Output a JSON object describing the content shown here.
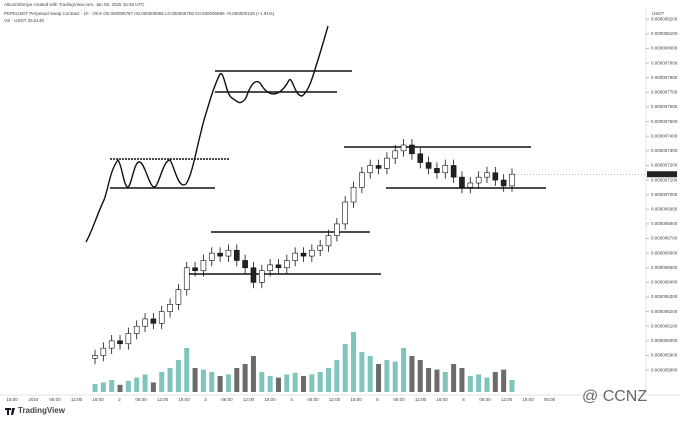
{
  "chart_data": {
    "type": "candlestick",
    "credit": "AltcoinSherpa created with TradingView.com, Jan 06, 2025 15:46 UTC",
    "title": "PEPEUSDT Perpetual Swap Contract · 1h · OKX  O0.000006767 H0.000006955 L0.000006758 C0.000006896 +0.000000129 (+1.91%)",
    "subtitle": "Vol · USDT  25.514K",
    "axis_unit": "USDT",
    "logo": "TradingView",
    "watermark": "@ CCNZ",
    "up_color": "#ffffff",
    "down_color": "#222222",
    "volume_up_color": "#7fc4bd",
    "volume_down_color": "#6b6b6b",
    "time_labels": [
      "18:00",
      "2024",
      "06:00",
      "12:00",
      "18:00",
      "2",
      "06:00",
      "12:00",
      "18:00",
      "3",
      "06:00",
      "12:00",
      "18:00",
      "4",
      "06:00",
      "12:00",
      "18:00",
      "5",
      "06:00",
      "12:00",
      "18:00",
      "6",
      "06:00",
      "12:00",
      "18:00",
      "06:00"
    ],
    "ylim": [
      5.65e-06,
      8.25e-06
    ],
    "yticks": [
      {
        "value": 8.2e-06,
        "label": "0.000008200"
      },
      {
        "value": 8.1e-06,
        "label": "0.000008100"
      },
      {
        "value": 8e-06,
        "label": "0.000008000"
      },
      {
        "value": 7.9e-06,
        "label": "0.000007900"
      },
      {
        "value": 7.8e-06,
        "label": "0.000007800"
      },
      {
        "value": 7.7e-06,
        "label": "0.000007700"
      },
      {
        "value": 7.6e-06,
        "label": "0.000007600"
      },
      {
        "value": 7.5e-06,
        "label": "0.000007500"
      },
      {
        "value": 7.4e-06,
        "label": "0.000007400"
      },
      {
        "value": 7.3e-06,
        "label": "0.000007300"
      },
      {
        "value": 7.2e-06,
        "label": "0.000007200"
      },
      {
        "value": 7.1e-06,
        "label": "0.000007100"
      },
      {
        "value": 7e-06,
        "label": "0.000007000"
      },
      {
        "value": 6.9e-06,
        "label": "0.000006900"
      },
      {
        "value": 6.8e-06,
        "label": "0.000006800"
      },
      {
        "value": 6.7e-06,
        "label": "0.000006700"
      },
      {
        "value": 6.6e-06,
        "label": "0.000006600"
      },
      {
        "value": 6.5e-06,
        "label": "0.000006500"
      },
      {
        "value": 6.4e-06,
        "label": "0.000006400"
      },
      {
        "value": 6.3e-06,
        "label": "0.000006300"
      },
      {
        "value": 6.2e-06,
        "label": "0.000006200"
      },
      {
        "value": 6.1e-06,
        "label": "0.000006100"
      },
      {
        "value": 6e-06,
        "label": "0.000006000"
      },
      {
        "value": 5.9e-06,
        "label": "0.000005900"
      },
      {
        "value": 5.8e-06,
        "label": "0.000005800"
      }
    ],
    "open": [
      5.88e-06,
      5.9e-06,
      5.95e-06,
      6e-06,
      5.98e-06,
      6.05e-06,
      6.1e-06,
      6.15e-06,
      6.12e-06,
      6.2e-06,
      6.25e-06,
      6.35e-06,
      6.5e-06,
      6.48e-06,
      6.55e-06,
      6.6e-06,
      6.58e-06,
      6.62e-06,
      6.55e-06,
      6.5e-06,
      6.4e-06,
      6.48e-06,
      6.52e-06,
      6.5e-06,
      6.55e-06,
      6.6e-06,
      6.58e-06,
      6.62e-06,
      6.65e-06,
      6.72e-06,
      6.8e-06,
      6.95e-06,
      7.05e-06,
      7.15e-06,
      7.2e-06,
      7.18e-06,
      7.25e-06,
      7.3e-06,
      7.34e-06,
      7.28e-06,
      7.22e-06,
      7.18e-06,
      7.15e-06,
      7.2e-06,
      7.12e-06,
      7.05e-06,
      7.08e-06,
      7.12e-06,
      7.15e-06,
      7.1e-06,
      7.06e-06
    ],
    "close": [
      5.9e-06,
      5.95e-06,
      6e-06,
      5.98e-06,
      6.05e-06,
      6.1e-06,
      6.15e-06,
      6.12e-06,
      6.2e-06,
      6.25e-06,
      6.35e-06,
      6.5e-06,
      6.48e-06,
      6.55e-06,
      6.6e-06,
      6.58e-06,
      6.62e-06,
      6.55e-06,
      6.5e-06,
      6.4e-06,
      6.48e-06,
      6.52e-06,
      6.5e-06,
      6.55e-06,
      6.6e-06,
      6.58e-06,
      6.62e-06,
      6.65e-06,
      6.72e-06,
      6.8e-06,
      6.95e-06,
      7.05e-06,
      7.15e-06,
      7.2e-06,
      7.18e-06,
      7.25e-06,
      7.3e-06,
      7.34e-06,
      7.28e-06,
      7.22e-06,
      7.18e-06,
      7.15e-06,
      7.2e-06,
      7.12e-06,
      7.05e-06,
      7.08e-06,
      7.12e-06,
      7.15e-06,
      7.1e-06,
      7.06e-06,
      7.14e-06
    ],
    "high": [
      5.94e-06,
      5.99e-06,
      6.04e-06,
      6.04e-06,
      6.09e-06,
      6.14e-06,
      6.19e-06,
      6.19e-06,
      6.24e-06,
      6.29e-06,
      6.39e-06,
      6.54e-06,
      6.54e-06,
      6.59e-06,
      6.64e-06,
      6.64e-06,
      6.66e-06,
      6.66e-06,
      6.59e-06,
      6.54e-06,
      6.52e-06,
      6.56e-06,
      6.56e-06,
      6.59e-06,
      6.64e-06,
      6.64e-06,
      6.66e-06,
      6.69e-06,
      6.76e-06,
      6.84e-06,
      6.99e-06,
      7.09e-06,
      7.19e-06,
      7.24e-06,
      7.24e-06,
      7.29e-06,
      7.34e-06,
      7.38e-06,
      7.38e-06,
      7.32e-06,
      7.26e-06,
      7.22e-06,
      7.24e-06,
      7.24e-06,
      7.16e-06,
      7.12e-06,
      7.16e-06,
      7.19e-06,
      7.19e-06,
      7.14e-06,
      7.18e-06
    ],
    "low": [
      5.84e-06,
      5.86e-06,
      5.91e-06,
      5.94e-06,
      5.94e-06,
      6.01e-06,
      6.06e-06,
      6.08e-06,
      6.08e-06,
      6.16e-06,
      6.21e-06,
      6.31e-06,
      6.44e-06,
      6.44e-06,
      6.51e-06,
      6.54e-06,
      6.54e-06,
      6.51e-06,
      6.46e-06,
      6.36e-06,
      6.36e-06,
      6.44e-06,
      6.46e-06,
      6.46e-06,
      6.51e-06,
      6.54e-06,
      6.54e-06,
      6.58e-06,
      6.61e-06,
      6.68e-06,
      6.76e-06,
      6.91e-06,
      7.01e-06,
      7.11e-06,
      7.14e-06,
      7.14e-06,
      7.21e-06,
      7.26e-06,
      7.24e-06,
      7.18e-06,
      7.14e-06,
      7.11e-06,
      7.11e-06,
      7.08e-06,
      7.01e-06,
      7.01e-06,
      7.04e-06,
      7.08e-06,
      7.06e-06,
      7.02e-06,
      7.02e-06
    ],
    "volume": [
      10,
      12,
      15,
      9,
      14,
      18,
      22,
      12,
      25,
      30,
      40,
      55,
      30,
      28,
      25,
      20,
      22,
      30,
      35,
      45,
      25,
      20,
      18,
      22,
      24,
      20,
      22,
      25,
      30,
      40,
      60,
      75,
      50,
      45,
      35,
      40,
      38,
      55,
      45,
      40,
      30,
      28,
      25,
      35,
      30,
      20,
      22,
      18,
      25,
      28,
      15
    ],
    "volume_lim": [
      0,
      100
    ]
  }
}
